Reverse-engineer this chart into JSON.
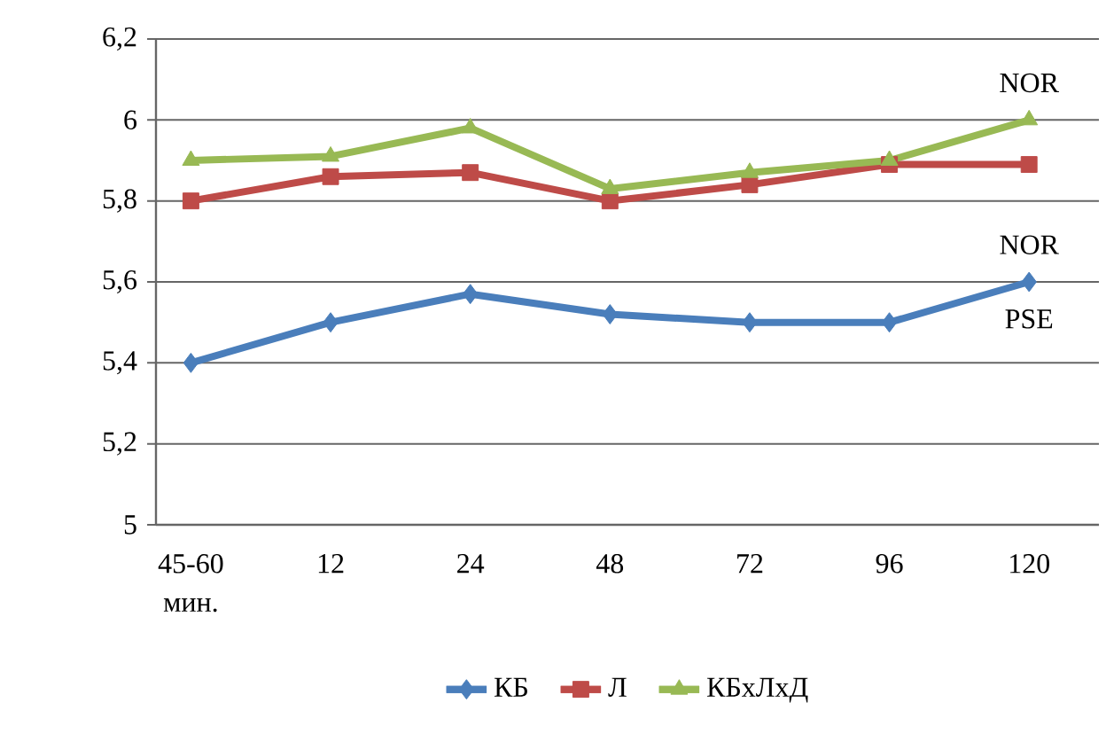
{
  "chart_data": {
    "type": "line",
    "categories": [
      "45-60",
      "12",
      "24",
      "48",
      "72",
      "96",
      "120"
    ],
    "xlabel": "мин.",
    "series": [
      {
        "name": "КБ",
        "color": "#4a7ebb",
        "marker": "diamond",
        "values": [
          5.4,
          5.5,
          5.57,
          5.52,
          5.5,
          5.5,
          5.6
        ]
      },
      {
        "name": "Л",
        "color": "#be4b48",
        "marker": "square",
        "values": [
          5.8,
          5.86,
          5.87,
          5.8,
          5.84,
          5.89,
          5.89
        ]
      },
      {
        "name": "КБхЛхД",
        "color": "#98b954",
        "marker": "triangle",
        "values": [
          5.9,
          5.91,
          5.98,
          5.83,
          5.87,
          5.9,
          6.0
        ]
      }
    ],
    "ylim": [
      5,
      6.2
    ],
    "yticks": [
      5,
      {
        "value": 5.2,
        "label": "5,2"
      },
      {
        "value": 5.4,
        "label": "5,4"
      },
      {
        "value": 5.6,
        "label": "5,6"
      },
      {
        "value": 5.8,
        "label": "5,8"
      },
      6,
      {
        "value": 6.2,
        "label": "6,2"
      }
    ],
    "grid": "y",
    "legend": "bottom",
    "line_style": "solid",
    "annotations": [
      "NOR",
      "NOR",
      "PSE"
    ]
  }
}
